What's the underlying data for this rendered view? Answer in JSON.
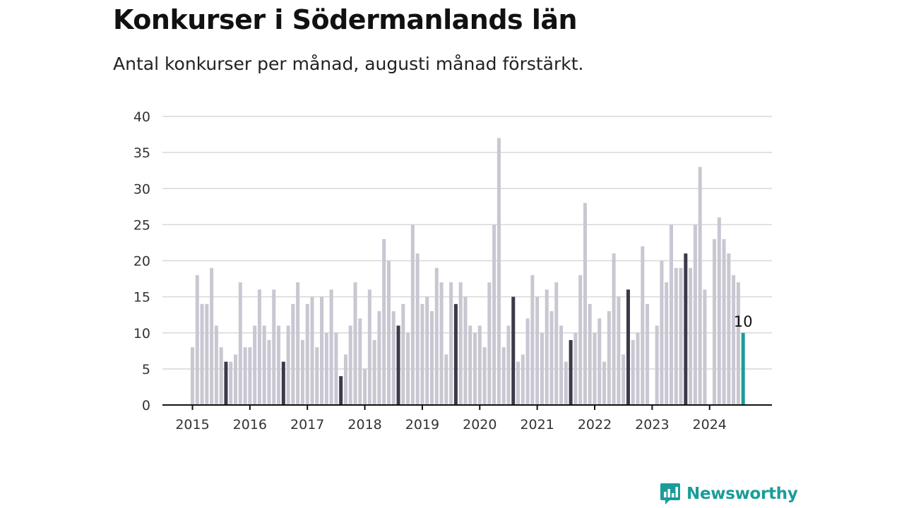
{
  "title": "Konkurser i Södermanlands län",
  "subtitle": "Antal konkurser per månad, augusti månad förstärkt.",
  "logo": {
    "text": "Newsworthy",
    "icon": "newsworthy-chart-bubble-icon"
  },
  "colors": {
    "base": "#c8c7d2",
    "highlight": "#3b3a4a",
    "current": "#1a9c9a"
  },
  "chart_data": {
    "type": "bar",
    "title": "Konkurser i Södermanlands län",
    "subtitle": "Antal konkurser per månad, augusti månad förstärkt.",
    "xlabel": "",
    "ylabel": "",
    "ylim": [
      0,
      40
    ],
    "yticks": [
      0,
      5,
      10,
      15,
      20,
      25,
      30,
      35,
      40
    ],
    "xticks": [
      "2015",
      "2016",
      "2017",
      "2018",
      "2019",
      "2020",
      "2021",
      "2022",
      "2023",
      "2024"
    ],
    "grid": true,
    "highlight_month": "August",
    "annotation": {
      "label": "10",
      "year": 2024,
      "month": 8
    },
    "series": [
      {
        "year": 2015,
        "values": [
          8,
          18,
          14,
          14,
          19,
          11,
          8,
          6,
          6,
          7,
          17,
          8
        ]
      },
      {
        "year": 2016,
        "values": [
          8,
          11,
          16,
          11,
          9,
          16,
          11,
          6,
          11,
          14,
          17,
          9
        ]
      },
      {
        "year": 2017,
        "values": [
          14,
          15,
          8,
          15,
          10,
          16,
          10,
          4,
          7,
          11,
          17,
          12
        ]
      },
      {
        "year": 2018,
        "values": [
          5,
          16,
          9,
          13,
          23,
          20,
          13,
          11,
          14,
          10,
          25,
          21
        ]
      },
      {
        "year": 2019,
        "values": [
          14,
          15,
          13,
          19,
          17,
          7,
          17,
          14,
          17,
          15,
          11,
          10
        ]
      },
      {
        "year": 2020,
        "values": [
          11,
          8,
          17,
          25,
          37,
          8,
          11,
          15,
          6,
          7,
          12,
          18
        ]
      },
      {
        "year": 2021,
        "values": [
          15,
          10,
          16,
          13,
          17,
          11,
          6,
          9,
          10,
          18,
          28,
          14
        ]
      },
      {
        "year": 2022,
        "values": [
          10,
          12,
          6,
          13,
          21,
          15,
          7,
          16,
          9,
          10,
          22,
          14
        ]
      },
      {
        "year": 2023,
        "values": [
          0,
          11,
          20,
          17,
          25,
          19,
          19,
          21,
          19,
          25,
          33,
          16
        ]
      },
      {
        "year": 2024,
        "values": [
          0,
          23,
          26,
          23,
          21,
          18,
          17,
          10
        ]
      }
    ]
  }
}
